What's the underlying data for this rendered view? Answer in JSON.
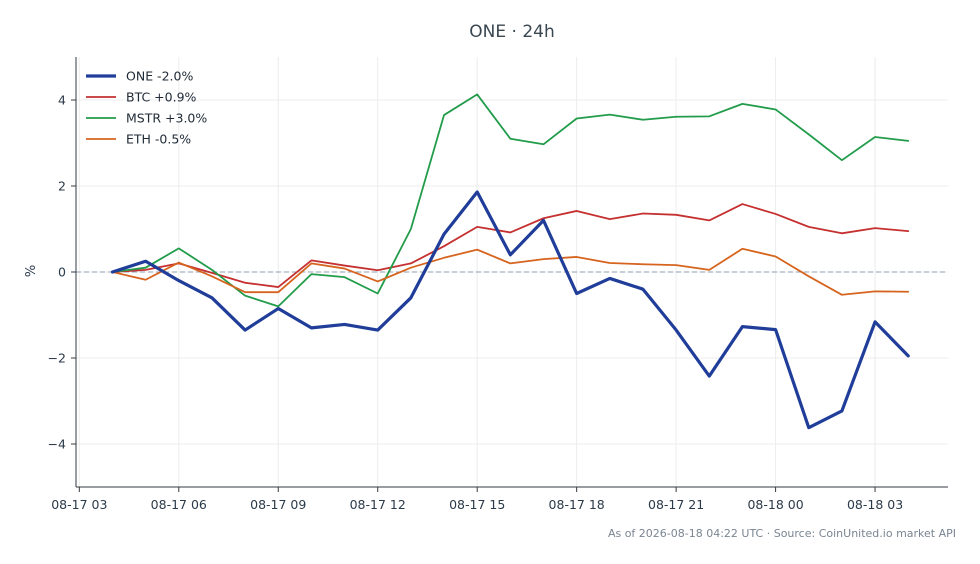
{
  "chart_data": {
    "type": "line",
    "title": "ONE · 24h",
    "xlabel": "",
    "ylabel": "%",
    "footer": "As of 2026-08-18 04:22 UTC · Source: CoinUnited.io market API",
    "x_ticks": [
      {
        "label": "08-17 03",
        "hour": 3
      },
      {
        "label": "08-17 06",
        "hour": 6
      },
      {
        "label": "08-17 09",
        "hour": 9
      },
      {
        "label": "08-17 12",
        "hour": 12
      },
      {
        "label": "08-17 15",
        "hour": 15
      },
      {
        "label": "08-17 18",
        "hour": 18
      },
      {
        "label": "08-17 21",
        "hour": 21
      },
      {
        "label": "08-18 00",
        "hour": 24
      },
      {
        "label": "08-18 03",
        "hour": 27
      }
    ],
    "y_ticks": [
      {
        "label": "−4",
        "value": -4
      },
      {
        "label": "−2",
        "value": -2
      },
      {
        "label": "0",
        "value": 0
      },
      {
        "label": "2",
        "value": 2
      },
      {
        "label": "4",
        "value": 4
      }
    ],
    "xlim": [
      2.9,
      29.2
    ],
    "ylim": [
      -5,
      5
    ],
    "x": [
      4,
      5,
      6,
      7,
      8,
      9,
      10,
      11,
      12,
      13,
      14,
      15,
      16,
      17,
      18,
      19,
      20,
      21,
      22,
      23,
      24,
      25,
      26,
      27,
      28
    ],
    "zero_line": true,
    "grid": true,
    "legend_position": "top-left",
    "series": [
      {
        "name": "ONE -2.0%",
        "color": "#1f3d99",
        "width": 3.2,
        "values": [
          0.0,
          0.25,
          -0.2,
          -0.6,
          -1.35,
          -0.85,
          -1.3,
          -1.22,
          -1.35,
          -0.6,
          0.88,
          1.86,
          0.4,
          1.2,
          -0.5,
          -0.15,
          -0.4,
          -1.35,
          -2.42,
          -1.27,
          -1.34,
          -3.62,
          -3.23,
          -1.16,
          -1.95
        ]
      },
      {
        "name": "BTC +0.9%",
        "color": "#c53030",
        "width": 1.8,
        "values": [
          0.0,
          0.05,
          0.2,
          -0.02,
          -0.25,
          -0.35,
          0.27,
          0.15,
          0.04,
          0.2,
          0.6,
          1.05,
          0.92,
          1.25,
          1.42,
          1.23,
          1.36,
          1.33,
          1.2,
          1.58,
          1.35,
          1.05,
          0.9,
          1.02,
          0.95
        ]
      },
      {
        "name": "MSTR +3.0%",
        "color": "#229c4a",
        "width": 1.8,
        "values": [
          0.0,
          0.1,
          0.55,
          0.05,
          -0.55,
          -0.8,
          -0.05,
          -0.12,
          -0.5,
          1.0,
          3.65,
          4.13,
          3.1,
          2.97,
          3.57,
          3.66,
          3.54,
          3.61,
          3.62,
          3.91,
          3.78,
          3.2,
          2.6,
          3.14,
          3.05
        ]
      },
      {
        "name": "ETH -0.5%",
        "color": "#d6641e",
        "width": 1.8,
        "values": [
          0.0,
          -0.18,
          0.22,
          -0.1,
          -0.47,
          -0.47,
          0.2,
          0.08,
          -0.22,
          0.1,
          0.33,
          0.52,
          0.2,
          0.3,
          0.35,
          0.21,
          0.18,
          0.16,
          0.05,
          0.54,
          0.36,
          -0.1,
          -0.53,
          -0.45,
          -0.46
        ]
      }
    ]
  }
}
